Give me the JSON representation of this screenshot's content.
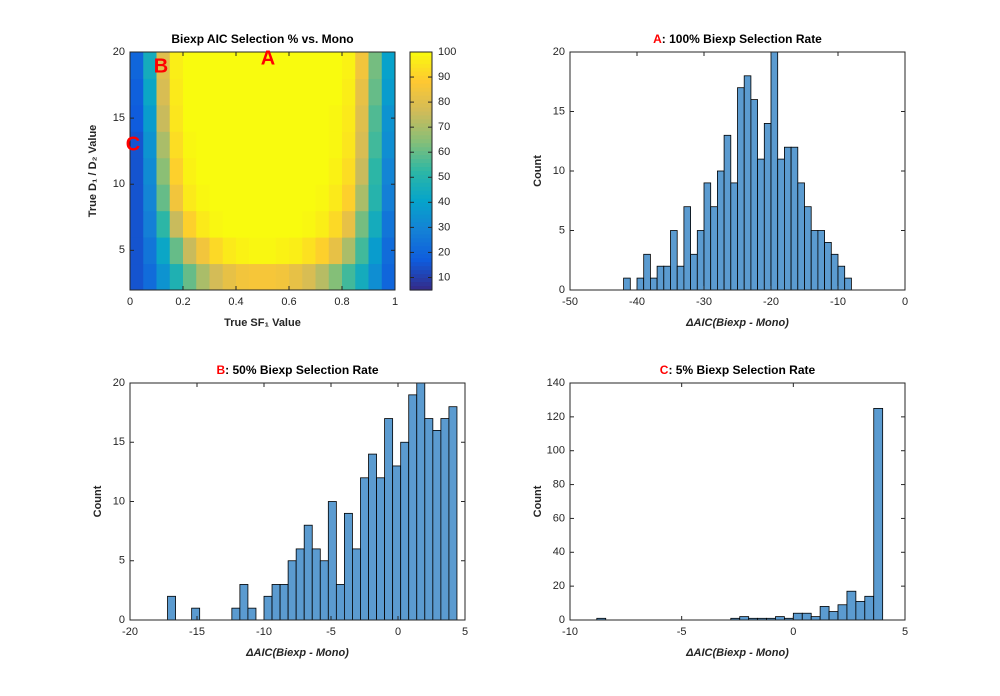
{
  "chart_data": [
    {
      "type": "heatmap",
      "title": "Biexp AIC Selection % vs. Mono",
      "xlabel": "True SF₁ Value",
      "ylabel": "True D₁ / D₂ Value",
      "x": [
        0.025,
        0.075,
        0.125,
        0.175,
        0.225,
        0.275,
        0.325,
        0.375,
        0.425,
        0.475,
        0.525,
        0.575,
        0.625,
        0.675,
        0.725,
        0.775,
        0.825,
        0.875,
        0.925,
        0.975
      ],
      "y": [
        3,
        5,
        7,
        9,
        11,
        13,
        15,
        17,
        19
      ],
      "z": [
        [
          15,
          22,
          35,
          48,
          60,
          70,
          77,
          82,
          85,
          86,
          86,
          85,
          82,
          78,
          72,
          64,
          55,
          45,
          33,
          20
        ],
        [
          15,
          25,
          42,
          60,
          75,
          85,
          92,
          96,
          98,
          99,
          99,
          98,
          97,
          94,
          90,
          82,
          70,
          55,
          38,
          22
        ],
        [
          15,
          28,
          52,
          75,
          90,
          96,
          99,
          100,
          100,
          100,
          100,
          100,
          100,
          99,
          97,
          92,
          82,
          62,
          45,
          25
        ],
        [
          15,
          30,
          60,
          85,
          96,
          99,
          100,
          100,
          100,
          100,
          100,
          100,
          100,
          100,
          99,
          96,
          90,
          70,
          50,
          28
        ],
        [
          15,
          32,
          65,
          90,
          98,
          100,
          100,
          100,
          100,
          100,
          100,
          100,
          100,
          100,
          100,
          98,
          93,
          75,
          52,
          30
        ],
        [
          15,
          35,
          70,
          93,
          99,
          100,
          100,
          100,
          100,
          100,
          100,
          100,
          100,
          100,
          100,
          99,
          95,
          78,
          55,
          33
        ],
        [
          17,
          38,
          75,
          95,
          100,
          100,
          100,
          100,
          100,
          100,
          100,
          100,
          100,
          100,
          100,
          99,
          96,
          80,
          57,
          35
        ],
        [
          18,
          42,
          78,
          96,
          100,
          100,
          100,
          100,
          100,
          100,
          100,
          100,
          100,
          100,
          100,
          100,
          97,
          82,
          60,
          38
        ],
        [
          20,
          45,
          80,
          97,
          100,
          100,
          100,
          100,
          100,
          100,
          100,
          100,
          100,
          100,
          100,
          100,
          98,
          85,
          62,
          40
        ]
      ],
      "xlim": [
        0,
        1
      ],
      "xticks": [
        0,
        0.2,
        0.4,
        0.6,
        0.8,
        1
      ],
      "ylim": [
        2,
        20
      ],
      "yticks": [
        5,
        10,
        15,
        20
      ],
      "colormap": "parula",
      "clim": [
        5,
        100
      ],
      "cticks": [
        10,
        20,
        30,
        40,
        50,
        60,
        70,
        80,
        90,
        100
      ],
      "annotations": [
        "A",
        "B",
        "C"
      ],
      "annotation_color": "#ff0000"
    },
    {
      "type": "histogram",
      "title_prefix": "A",
      "title": ": 100% Biexp Selection Rate",
      "xlabel": "ΔAIC(Biexp - Mono)",
      "ylabel": "Count",
      "color": "#5b9bd0",
      "bins": [
        -42,
        -41,
        -40,
        -39,
        -38,
        -37,
        -36,
        -35,
        -34,
        -33,
        -32,
        -31,
        -30,
        -29,
        -28,
        -27,
        -26,
        -25,
        -24,
        -23,
        -22,
        -21,
        -20,
        -19,
        -18,
        -17,
        -16,
        -15,
        -14,
        -13,
        -12,
        -11,
        -10,
        -9,
        -8
      ],
      "counts": [
        1,
        0,
        1,
        3,
        1,
        2,
        2,
        5,
        2,
        7,
        3,
        5,
        9,
        7,
        10,
        13,
        9,
        17,
        18,
        16,
        11,
        14,
        20,
        11,
        12,
        12,
        9,
        7,
        5,
        5,
        4,
        3,
        2,
        1
      ],
      "xlim": [
        -50,
        0
      ],
      "xticks": [
        -50,
        -40,
        -30,
        -20,
        -10,
        0
      ],
      "ylim": [
        0,
        20
      ],
      "yticks": [
        0,
        5,
        10,
        15,
        20
      ]
    },
    {
      "type": "histogram",
      "title_prefix": "B",
      "title": ": 50% Biexp Selection Rate",
      "xlabel": "ΔAIC(Biexp - Mono)",
      "ylabel": "Count",
      "color": "#5b9bd0",
      "bins": [
        -17.2,
        -16.6,
        -16,
        -15.4,
        -14.8,
        -14.2,
        -13.6,
        -13,
        -12.4,
        -11.8,
        -11.2,
        -10.6,
        -10,
        -9.4,
        -8.8,
        -8.2,
        -7.6,
        -7,
        -6.4,
        -5.8,
        -5.2,
        -4.6,
        -4,
        -3.4,
        -2.8,
        -2.2,
        -1.6,
        -1,
        -0.4,
        0.2,
        0.8,
        1.4,
        2,
        2.6,
        3.2,
        3.8,
        4.4
      ],
      "counts": [
        2,
        0,
        0,
        1,
        0,
        0,
        0,
        0,
        1,
        3,
        1,
        0,
        2,
        3,
        3,
        5,
        6,
        8,
        6,
        5,
        10,
        3,
        9,
        6,
        12,
        14,
        12,
        17,
        13,
        15,
        19,
        20,
        17,
        16,
        17,
        18
      ],
      "xlim": [
        -20,
        5
      ],
      "xticks": [
        -20,
        -15,
        -10,
        -5,
        0,
        5
      ],
      "ylim": [
        0,
        20
      ],
      "yticks": [
        0,
        5,
        10,
        15,
        20
      ]
    },
    {
      "type": "histogram",
      "title_prefix": "C",
      "title": ": 5% Biexp Selection Rate",
      "xlabel": "ΔAIC(Biexp - Mono)",
      "ylabel": "Count",
      "color": "#5b9bd0",
      "bins": [
        -8.8,
        -8.4,
        -8,
        -7.6,
        -7.2,
        -6.8,
        -6.4,
        -6,
        -5.6,
        -5.2,
        -4.8,
        -4.4,
        -4,
        -3.6,
        -3.2,
        -2.8,
        -2.4,
        -2,
        -1.6,
        -1.2,
        -0.8,
        -0.4,
        0,
        0.4,
        0.8,
        1.2,
        1.6,
        2,
        2.4,
        2.8,
        3.2,
        3.6,
        4
      ],
      "counts": [
        1,
        0,
        0,
        0,
        0,
        0,
        0,
        0,
        0,
        0,
        0,
        0,
        0,
        0,
        0,
        1,
        2,
        1,
        1,
        1,
        2,
        1,
        4,
        4,
        2,
        8,
        5,
        9,
        17,
        11,
        14,
        125
      ],
      "xlim": [
        -10,
        5
      ],
      "xticks": [
        -10,
        -5,
        0,
        5
      ],
      "ylim": [
        0,
        140
      ],
      "yticks": [
        0,
        20,
        40,
        60,
        80,
        100,
        120,
        140
      ]
    }
  ]
}
